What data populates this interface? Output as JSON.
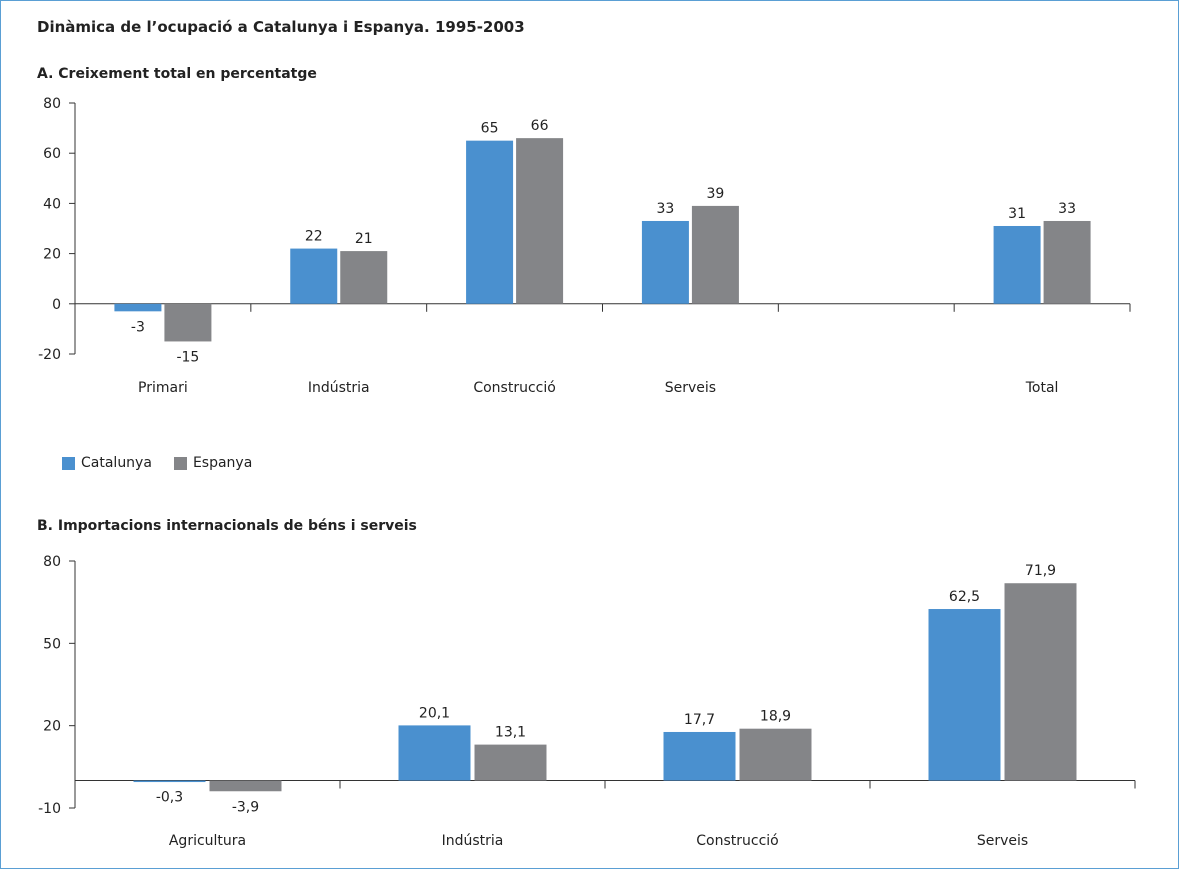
{
  "title": "Dinàmica de l’ocupació a Catalunya i Espanya. 1995-2003",
  "legend": {
    "catalunya": "Catalunya",
    "espanya": "Espanya"
  },
  "colors": {
    "catalunya": "#4a90cf",
    "espanya": "#848588",
    "frame": "#5a9fd4"
  },
  "chart_data": [
    {
      "type": "bar",
      "title": "A. Creixement total en percentatge",
      "categories": [
        "Primari",
        "Indústria",
        "Construcció",
        "Serveis",
        "",
        "Total"
      ],
      "series": [
        {
          "name": "Catalunya",
          "values": [
            -3,
            22,
            65,
            33,
            null,
            31
          ],
          "labels": [
            "-3",
            "22",
            "65",
            "33",
            "",
            "31"
          ]
        },
        {
          "name": "Espanya",
          "values": [
            -15,
            21,
            66,
            39,
            null,
            33
          ],
          "labels": [
            "-15",
            "21",
            "66",
            "39",
            "",
            "33"
          ]
        }
      ],
      "yticks": [
        "80",
        "60",
        "40",
        "20",
        "0",
        "-20"
      ],
      "ytick_values": [
        80,
        60,
        40,
        20,
        0,
        -20
      ],
      "ylim": [
        -20,
        80
      ]
    },
    {
      "type": "bar",
      "title": "B. Importacions internacionals de béns i serveis",
      "categories": [
        "Agricultura",
        "Indústria",
        "Construcció",
        "Serveis"
      ],
      "series": [
        {
          "name": "Catalunya",
          "values": [
            -0.3,
            20.1,
            17.7,
            62.5
          ],
          "labels": [
            "-0,3",
            "20,1",
            "17,7",
            "62,5"
          ]
        },
        {
          "name": "Espanya",
          "values": [
            -3.9,
            13.1,
            18.9,
            71.9
          ],
          "labels": [
            "-3,9",
            "13,1",
            "18,9",
            "71,9"
          ]
        }
      ],
      "yticks": [
        "80",
        "50",
        "20",
        "-10"
      ],
      "ytick_values": [
        80,
        50,
        20,
        -10
      ],
      "ylim": [
        -10,
        80
      ]
    }
  ]
}
